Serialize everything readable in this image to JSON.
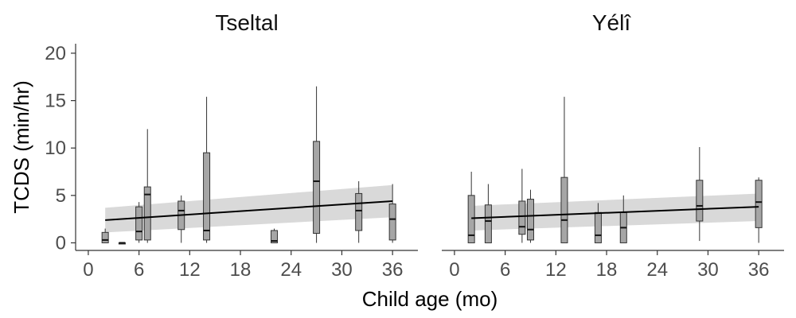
{
  "chart_data": {
    "type": "boxplot",
    "ylabel": "TCDS (min/hr)",
    "xlabel": "Child age (mo)",
    "xlim": [
      -1.5,
      39
    ],
    "ylim": [
      -0.8,
      21
    ],
    "xticks": [
      0,
      6,
      12,
      18,
      24,
      30,
      36
    ],
    "yticks": [
      0,
      5,
      10,
      15,
      20
    ],
    "colors": {
      "box": "#a6a6a6",
      "ribbon": "#d9d9d9",
      "line": "#000000",
      "axis": "#333333"
    },
    "panels": [
      {
        "title": "Tseltal",
        "show_yaxis": true,
        "trend": {
          "x": [
            2,
            36
          ],
          "y": [
            2.4,
            4.4
          ],
          "ci_low": [
            1.1,
            2.7
          ],
          "ci_high": [
            3.7,
            6.1
          ]
        },
        "boxes": [
          {
            "x": 2,
            "min": 0.0,
            "q1": 0.0,
            "median": 0.3,
            "q3": 1.1,
            "max": 1.5
          },
          {
            "x": 4,
            "min": 0.0,
            "q1": 0.0,
            "median": 0.0,
            "q3": 0.0,
            "max": 0.0
          },
          {
            "x": 6,
            "min": 0.0,
            "q1": 0.3,
            "median": 1.2,
            "q3": 3.8,
            "max": 4.3
          },
          {
            "x": 7,
            "min": 0.0,
            "q1": 0.3,
            "median": 5.1,
            "q3": 5.9,
            "max": 12.0
          },
          {
            "x": 11,
            "min": 0.0,
            "q1": 1.4,
            "median": 3.4,
            "q3": 4.4,
            "max": 5.0
          },
          {
            "x": 14,
            "min": 0.0,
            "q1": 0.3,
            "median": 1.3,
            "q3": 9.5,
            "max": 15.4
          },
          {
            "x": 22,
            "min": 0.0,
            "q1": 0.0,
            "median": 0.2,
            "q3": 1.3,
            "max": 1.5
          },
          {
            "x": 27,
            "min": 0.0,
            "q1": 1.0,
            "median": 6.5,
            "q3": 10.7,
            "max": 16.5
          },
          {
            "x": 32,
            "min": 0.0,
            "q1": 1.3,
            "median": 3.4,
            "q3": 5.2,
            "max": 6.5
          },
          {
            "x": 36,
            "min": 0.0,
            "q1": 0.3,
            "median": 2.5,
            "q3": 4.1,
            "max": 6.2
          }
        ]
      },
      {
        "title": "Yélî",
        "show_yaxis": false,
        "trend": {
          "x": [
            2,
            36
          ],
          "y": [
            2.6,
            3.8
          ],
          "ci_low": [
            1.3,
            2.3
          ],
          "ci_high": [
            3.9,
            5.2
          ]
        },
        "boxes": [
          {
            "x": 2,
            "min": 0.0,
            "q1": 0.0,
            "median": 0.8,
            "q3": 5.0,
            "max": 7.5
          },
          {
            "x": 4,
            "min": 0.0,
            "q1": 0.0,
            "median": 2.3,
            "q3": 4.0,
            "max": 6.2
          },
          {
            "x": 8,
            "min": 0.0,
            "q1": 0.9,
            "median": 1.7,
            "q3": 4.4,
            "max": 7.8
          },
          {
            "x": 9,
            "min": 0.0,
            "q1": 0.3,
            "median": 1.4,
            "q3": 4.6,
            "max": 5.6
          },
          {
            "x": 13,
            "min": 0.0,
            "q1": 0.0,
            "median": 2.4,
            "q3": 6.9,
            "max": 15.4
          },
          {
            "x": 17,
            "min": 0.0,
            "q1": 0.0,
            "median": 0.8,
            "q3": 3.2,
            "max": 4.2
          },
          {
            "x": 20,
            "min": 0.0,
            "q1": 0.0,
            "median": 1.6,
            "q3": 3.2,
            "max": 5.0
          },
          {
            "x": 29,
            "min": 0.2,
            "q1": 2.3,
            "median": 3.9,
            "q3": 6.6,
            "max": 10.1
          },
          {
            "x": 36,
            "min": 0.0,
            "q1": 1.6,
            "median": 4.3,
            "q3": 6.6,
            "max": 6.9
          }
        ]
      }
    ]
  }
}
